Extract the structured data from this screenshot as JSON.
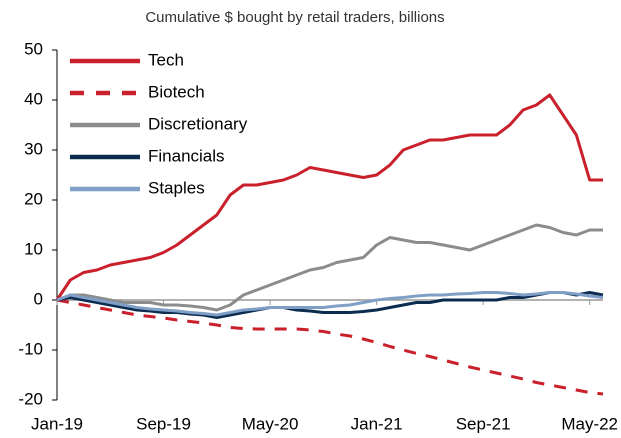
{
  "chart_data": {
    "type": "line",
    "title": "Cumulative $ bought by retail traders, billions",
    "categories": [
      "Jan-19",
      null,
      null,
      null,
      null,
      null,
      null,
      null,
      "Sep-19",
      null,
      null,
      null,
      null,
      null,
      null,
      null,
      "May-20",
      null,
      null,
      null,
      null,
      null,
      null,
      null,
      "Jan-21",
      null,
      null,
      null,
      null,
      null,
      null,
      null,
      "Sep-21",
      null,
      null,
      null,
      null,
      null,
      null,
      null,
      "May-22",
      null
    ],
    "series": [
      {
        "name": "Tech",
        "color": "#c9202c",
        "style": "solid",
        "values": [
          0,
          4,
          5.5,
          6,
          7,
          7.5,
          8,
          8.5,
          9.5,
          11,
          13,
          15,
          17,
          21,
          23,
          23,
          23.5,
          24,
          25,
          26.5,
          26,
          25.5,
          25,
          24.5,
          25,
          27,
          30,
          31,
          32,
          32,
          32.5,
          33,
          33,
          33,
          35,
          38,
          39,
          41,
          37,
          33,
          24,
          24
        ]
      },
      {
        "name": "Biotech",
        "color": "#c9202c",
        "style": "dashed",
        "values": [
          0,
          -0.5,
          -1,
          -1.5,
          -2,
          -2.5,
          -3,
          -3.3,
          -3.6,
          -4,
          -4.3,
          -4.6,
          -5,
          -5.5,
          -5.7,
          -5.8,
          -5.8,
          -5.8,
          -5.8,
          -6,
          -6.3,
          -6.8,
          -7.2,
          -7.8,
          -8.5,
          -9.3,
          -10,
          -10.7,
          -11.3,
          -12,
          -12.7,
          -13.4,
          -14,
          -14.6,
          -15.2,
          -15.8,
          -16.5,
          -17,
          -17.5,
          -18,
          -18.5,
          -18.8
        ]
      },
      {
        "name": "Discretionary",
        "color": "#8c8c8c",
        "style": "solid",
        "values": [
          0,
          1,
          1,
          0.5,
          0,
          -0.5,
          -0.5,
          -0.5,
          -1,
          -1,
          -1.2,
          -1.5,
          -2,
          -1,
          1,
          2,
          3,
          4,
          5,
          6,
          6.5,
          7.5,
          8,
          8.5,
          11,
          12.5,
          12,
          11.5,
          11.5,
          11,
          10.5,
          10,
          11,
          12,
          13,
          14,
          15,
          14.5,
          13.5,
          13,
          14,
          14
        ]
      },
      {
        "name": "Financials",
        "color": "#0b2c4f",
        "style": "solid",
        "values": [
          0,
          0.5,
          0,
          -0.5,
          -1,
          -1.5,
          -2,
          -2.2,
          -2.5,
          -2.5,
          -2.8,
          -3,
          -3.5,
          -3,
          -2.5,
          -2,
          -1.5,
          -1.5,
          -2,
          -2.2,
          -2.5,
          -2.5,
          -2.5,
          -2.3,
          -2,
          -1.5,
          -1,
          -0.5,
          -0.5,
          0,
          0,
          0,
          0,
          0,
          0.5,
          0.5,
          1,
          1.5,
          1.5,
          1,
          1.5,
          1
        ]
      },
      {
        "name": "Staples",
        "color": "#7f9fc6",
        "style": "solid",
        "values": [
          0,
          1,
          0.5,
          0,
          -0.5,
          -1,
          -1.5,
          -1.8,
          -2,
          -2.2,
          -2.5,
          -2.7,
          -3,
          -2.5,
          -2,
          -1.8,
          -1.5,
          -1.5,
          -1.5,
          -1.5,
          -1.5,
          -1.2,
          -1,
          -0.5,
          0,
          0.3,
          0.5,
          0.8,
          1,
          1,
          1.2,
          1.3,
          1.5,
          1.5,
          1.3,
          1,
          1.2,
          1.5,
          1.5,
          1.2,
          0.8,
          0.5
        ]
      }
    ],
    "ylim": [
      -20,
      50
    ],
    "yticks": [
      -20,
      -10,
      0,
      10,
      20,
      30,
      40,
      50
    ],
    "legend": "upper left",
    "grid": false
  }
}
